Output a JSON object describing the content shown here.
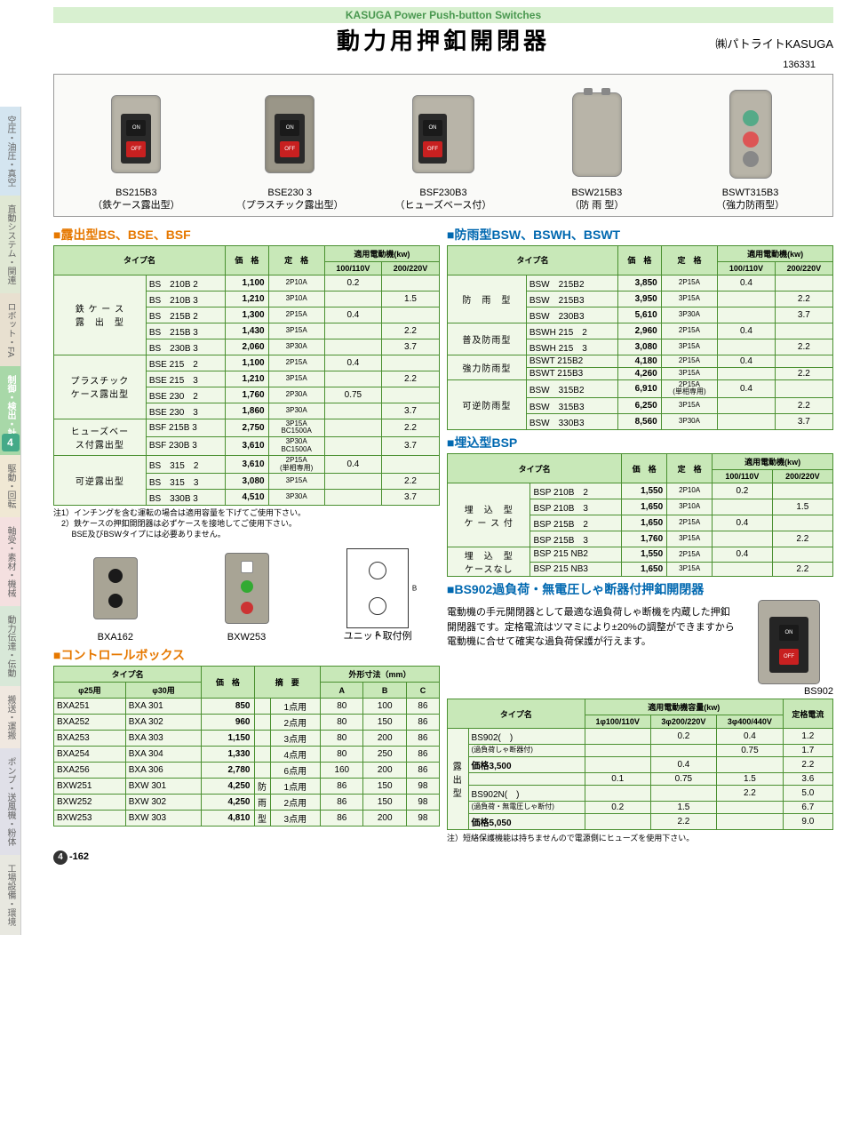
{
  "header": {
    "en": "KASUGA Power Push-button Switches",
    "jp": "動力用押釦開閉器",
    "brand": "㈱パトライトKASUGA",
    "catalog": "136331"
  },
  "sidebar": [
    "空圧・油圧・真空",
    "直動システム・関連",
    "ロボット・FA",
    "制御・検出・計測",
    "駆動・回転",
    "軸受・素材・機械",
    "動力伝達・伝動",
    "搬送・運搬",
    "ポンプ・送風機・粉体",
    "工場設備・環境"
  ],
  "sidebar_num": "4",
  "products": [
    {
      "model": "BS215B3",
      "type": "（鉄ケース露出型）"
    },
    {
      "model": "BSE230 3",
      "type": "（プラスチック露出型）"
    },
    {
      "model": "BSF230B3",
      "type": "（ヒューズベース付）"
    },
    {
      "model": "BSW215B3",
      "type": "（防 雨 型）"
    },
    {
      "model": "BSWT315B3",
      "type": "（強力防雨型）"
    }
  ],
  "section1": {
    "title": "■露出型BS、BSE、BSF",
    "cols": [
      "タイプ名",
      "価　格",
      "定　格",
      "適用電動機(kw)"
    ],
    "subcols": [
      "100/110V",
      "200/220V"
    ],
    "groups": [
      {
        "label": "鉄 ケ ー ス\n露　出　型",
        "rows": [
          [
            "BS　210B 2",
            "1,100",
            "2P10A",
            "0.2",
            ""
          ],
          [
            "BS　210B 3",
            "1,210",
            "3P10A",
            "",
            "1.5"
          ],
          [
            "BS　215B 2",
            "1,300",
            "2P15A",
            "0.4",
            ""
          ],
          [
            "BS　215B 3",
            "1,430",
            "3P15A",
            "",
            "2.2"
          ],
          [
            "BS　230B 3",
            "2,060",
            "3P30A",
            "",
            "3.7"
          ]
        ]
      },
      {
        "label": "プラスチック\nケース露出型",
        "rows": [
          [
            "BSE 215　2",
            "1,100",
            "2P15A",
            "0.4",
            ""
          ],
          [
            "BSE 215　3",
            "1,210",
            "3P15A",
            "",
            "2.2"
          ],
          [
            "BSE 230　2",
            "1,760",
            "2P30A",
            "0.75",
            ""
          ],
          [
            "BSE 230　3",
            "1,860",
            "3P30A",
            "",
            "3.7"
          ]
        ]
      },
      {
        "label": "ヒューズベー\nス付露出型",
        "rows": [
          [
            "BSF 215B 3",
            "2,750",
            "3P15A\nBC1500A",
            "",
            "2.2"
          ],
          [
            "BSF 230B 3",
            "3,610",
            "3P30A\nBC1500A",
            "",
            "3.7"
          ]
        ]
      },
      {
        "label": "可逆露出型",
        "rows": [
          [
            "BS　315　2",
            "3,610",
            "2P15A\n(単相専用)",
            "0.4",
            ""
          ],
          [
            "BS　315　3",
            "3,080",
            "3P15A",
            "",
            "2.2"
          ],
          [
            "BS　330B 3",
            "4,510",
            "3P30A",
            "",
            "3.7"
          ]
        ]
      }
    ],
    "note": "注1）インチングを含む運転の場合は適用容量を下げてご使用下さい。\n　2）鉄ケースの押釦開閉器は必ずケースを接地してご使用下さい。\n　　 BSE及びBSWタイプには必要ありません。"
  },
  "section2": {
    "title": "■防雨型BSW、BSWH、BSWT",
    "groups": [
      {
        "label": "防　雨　型",
        "rows": [
          [
            "BSW　215B2",
            "3,850",
            "2P15A",
            "0.4",
            ""
          ],
          [
            "BSW　215B3",
            "3,950",
            "3P15A",
            "",
            "2.2"
          ],
          [
            "BSW　230B3",
            "5,610",
            "3P30A",
            "",
            "3.7"
          ]
        ]
      },
      {
        "label": "普及防雨型",
        "rows": [
          [
            "BSWH 215　2",
            "2,960",
            "2P15A",
            "0.4",
            ""
          ],
          [
            "BSWH 215　3",
            "3,080",
            "3P15A",
            "",
            "2.2"
          ]
        ]
      },
      {
        "label": "強力防雨型",
        "rows": [
          [
            "BSWT 215B2",
            "4,180",
            "2P15A",
            "0.4",
            ""
          ],
          [
            "BSWT 215B3",
            "4,260",
            "3P15A",
            "",
            "2.2"
          ]
        ]
      },
      {
        "label": "可逆防雨型",
        "rows": [
          [
            "BSW　315B2",
            "6,910",
            "2P15A\n(単相専用)",
            "0.4",
            ""
          ],
          [
            "BSW　315B3",
            "6,250",
            "3P15A",
            "",
            "2.2"
          ],
          [
            "BSW　330B3",
            "8,560",
            "3P30A",
            "",
            "3.7"
          ]
        ]
      }
    ]
  },
  "section3": {
    "title": "■埋込型BSP",
    "groups": [
      {
        "label": "埋　込　型\nケ ー ス 付",
        "rows": [
          [
            "BSP 210B　2",
            "1,550",
            "2P10A",
            "0.2",
            ""
          ],
          [
            "BSP 210B　3",
            "1,650",
            "3P10A",
            "",
            "1.5"
          ],
          [
            "BSP 215B　2",
            "1,650",
            "2P15A",
            "0.4",
            ""
          ],
          [
            "BSP 215B　3",
            "1,760",
            "3P15A",
            "",
            "2.2"
          ]
        ]
      },
      {
        "label": "埋　込　型\nケースなし",
        "rows": [
          [
            "BSP 215 NB2",
            "1,550",
            "2P15A",
            "0.4",
            ""
          ],
          [
            "BSP 215 NB3",
            "1,650",
            "3P15A",
            "",
            "2.2"
          ]
        ]
      }
    ]
  },
  "section4": {
    "title": "■BS902過負荷・無電圧しゃ断器付押釦開閉器",
    "desc": "電動機の手元開閉器として最適な過負荷しゃ断機を内蔵した押釦開閉器です。定格電流はツマミにより±20%の調整ができますから電動機に合せて確実な過負荷保護が行えます。",
    "model": "BS902",
    "cols": [
      "タイプ名",
      "適用電動機容量(kw)",
      "定格電流"
    ],
    "subcols": [
      "1φ100/110V",
      "3φ200/220V",
      "3φ400/440V",
      "(A)±20%"
    ],
    "groups": [
      {
        "label": "露\n出\n型",
        "name1": "BS902(　)",
        "sub1": "(過負荷しゃ断器付)",
        "price1": "価格3,500",
        "name2": "BS902N(　)",
        "sub2": "(過負荷・無電圧しゃ断付)",
        "price2": "価格5,050",
        "rows": [
          [
            "",
            "0.2",
            "0.4",
            "1.2"
          ],
          [
            "",
            "",
            "0.75",
            "1.7"
          ],
          [
            "",
            "0.4",
            "",
            "2.2"
          ],
          [
            "0.1",
            "0.75",
            "1.5",
            "3.6"
          ],
          [
            "",
            "",
            "2.2",
            "5.0"
          ],
          [
            "0.2",
            "1.5",
            "",
            "6.7"
          ],
          [
            "",
            "2.2",
            "",
            "9.0"
          ]
        ]
      }
    ],
    "footnote": "注）短絡保護機能は持ちませんので電源側にヒューズを使用下さい。"
  },
  "boxprods": [
    {
      "name": "BXA162"
    },
    {
      "name": "BXW253"
    },
    {
      "name": "ユニット取付例"
    }
  ],
  "section5": {
    "title": "■コントロールボックス",
    "cols": [
      "タイプ名",
      "価　格",
      "摘　要",
      "外形寸法（mm）"
    ],
    "subcols": [
      "φ25用",
      "φ30用",
      "",
      "",
      "A",
      "B",
      "C"
    ],
    "rows": [
      [
        "BXA251",
        "BXA 301",
        "850",
        "",
        "1点用",
        "80",
        "100",
        "86"
      ],
      [
        "BXA252",
        "BXA 302",
        "960",
        "",
        "2点用",
        "80",
        "150",
        "86"
      ],
      [
        "BXA253",
        "BXA 303",
        "1,150",
        "",
        "3点用",
        "80",
        "200",
        "86"
      ],
      [
        "BXA254",
        "BXA 304",
        "1,330",
        "",
        "4点用",
        "80",
        "250",
        "86"
      ],
      [
        "BXA256",
        "BXA 306",
        "2,780",
        "",
        "6点用",
        "160",
        "200",
        "86"
      ],
      [
        "BXW251",
        "BXW 301",
        "4,250",
        "防",
        "1点用",
        "86",
        "150",
        "98"
      ],
      [
        "BXW252",
        "BXW 302",
        "4,250",
        "雨",
        "2点用",
        "86",
        "150",
        "98"
      ],
      [
        "BXW253",
        "BXW 303",
        "4,810",
        "型",
        "3点用",
        "86",
        "200",
        "98"
      ]
    ]
  },
  "footer": {
    "num": "4",
    "page": "-162"
  },
  "labels": {
    "on": "ON",
    "off": "OFF",
    "typename": "タイプ名",
    "price": "価　格",
    "rating": "定　格",
    "motor": "適用電動機(kw)",
    "v100": "100/110V",
    "v200": "200/220V",
    "dims": "外形寸法（mm）",
    "summary": "摘　要",
    "dimA": "A",
    "dimB": "B"
  },
  "colors": {
    "accent_green": "#4a9030",
    "header_green": "#4a9850",
    "title_orange": "#e67800",
    "title_blue": "#0068b0",
    "table_bg": "#f0f8e8",
    "table_header": "#c8e8b8",
    "off_red": "#c82020"
  }
}
